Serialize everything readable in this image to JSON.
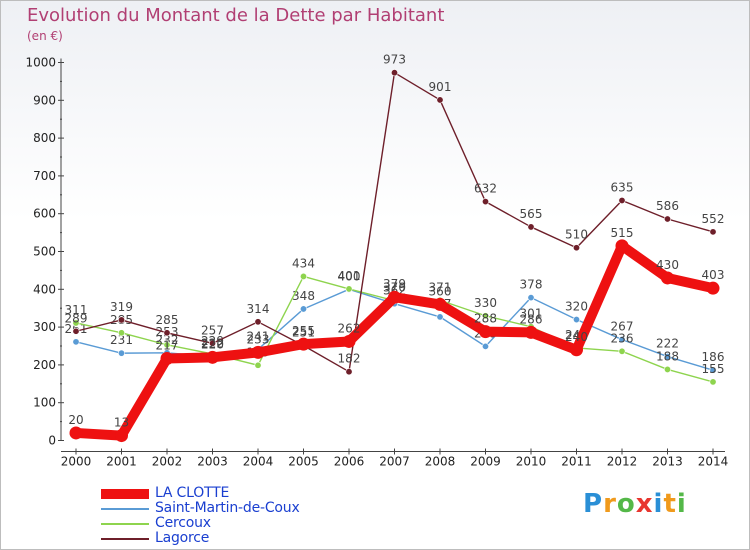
{
  "header": {
    "title": "Evolution du Montant de la Dette par Habitant",
    "subtitle": "(en €)"
  },
  "brand": {
    "letters": [
      "P",
      "r",
      "o",
      "x",
      "i",
      "t",
      "i"
    ],
    "colors": [
      "#2a8fd6",
      "#f09a1c",
      "#54b848",
      "#e8362f",
      "#2a8fd6",
      "#f09a1c",
      "#54b848"
    ]
  },
  "chart_data": {
    "type": "line",
    "title": "Evolution du Montant de la Dette par Habitant",
    "ylabel": "(en €)",
    "xlabel": "",
    "ylim": [
      0,
      1000
    ],
    "yticks": [
      0,
      100,
      200,
      300,
      400,
      500,
      600,
      700,
      800,
      900,
      1000
    ],
    "grid": false,
    "legend_position": "bottom-left",
    "categories": [
      "2000",
      "2001",
      "2002",
      "2003",
      "2004",
      "2005",
      "2006",
      "2007",
      "2008",
      "2009",
      "2010",
      "2011",
      "2012",
      "2013",
      "2014"
    ],
    "series": [
      {
        "name": "Saint-Martin-de-Coux",
        "color": "#5a9bd5",
        "values": [
          261,
          231,
          232,
          222,
          241,
          348,
          400,
          362,
          327,
          249,
          378,
          320,
          267,
          222,
          186
        ]
      },
      {
        "name": "Cercoux",
        "color": "#8ed44e",
        "values": [
          311,
          285,
          253,
          229,
          199,
          434,
          401,
          370,
          371,
          330,
          301,
          245,
          236,
          188,
          155
        ]
      },
      {
        "name": "Lagorce",
        "color": "#6e1f2a",
        "values": [
          289,
          319,
          285,
          257,
          314,
          251,
          182,
          973,
          901,
          632,
          565,
          510,
          635,
          586,
          552
        ]
      },
      {
        "name": "LA CLOTTE",
        "color": "#ee1111",
        "values": [
          20,
          13,
          217,
          220,
          233,
          255,
          262,
          379,
          360,
          288,
          286,
          240,
          515,
          430,
          403
        ]
      }
    ]
  }
}
